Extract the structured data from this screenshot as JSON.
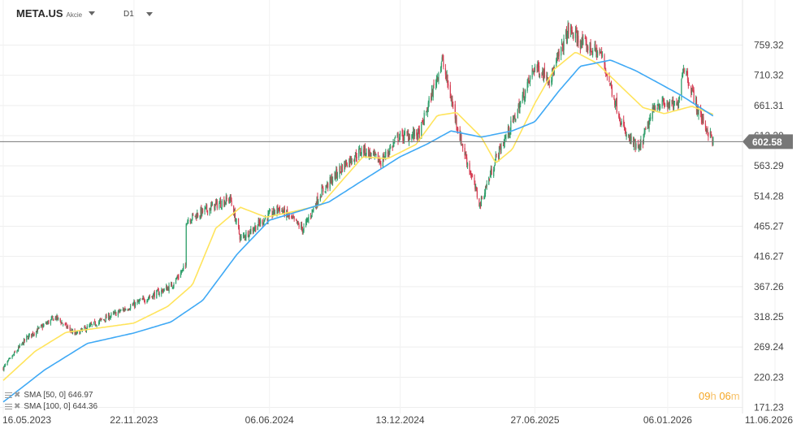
{
  "header": {
    "symbol": "META.US",
    "asset_type": "Akcie",
    "timeframe": "D1"
  },
  "legend": [
    {
      "label": "SMA [50, 0]",
      "value": "646.97",
      "color": "#ffe45c"
    },
    {
      "label": "SMA [100, 0]",
      "value": "644.36",
      "color": "#3fa9f5"
    }
  ],
  "countdown": {
    "hours": "09",
    "hours_unit": "h",
    "minutes": "06",
    "minutes_unit": "m"
  },
  "chart_data": {
    "type": "candlestick",
    "title": "",
    "xlabel": "",
    "ylabel": "",
    "ylim": [
      171.23,
      800
    ],
    "y_ticks": [
      "171.23",
      "220.23",
      "269.24",
      "318.25",
      "367.26",
      "416.27",
      "465.27",
      "514.28",
      "563.29",
      "612.30",
      "661.31",
      "710.32",
      "759.32"
    ],
    "x_ticks": [
      "16.05.2023",
      "22.11.2023",
      "06.06.2024",
      "13.12.2024",
      "27.06.2025",
      "06.01.2026",
      "11.06.2026"
    ],
    "x_range": [
      "16.05.2023",
      "11.06.2026"
    ],
    "current_price": {
      "value": 602.58,
      "label": "602.58",
      "color": "#777777"
    },
    "grid": true,
    "price_path": [
      [
        "2023-05-16",
        235
      ],
      [
        "2023-06-20",
        285
      ],
      [
        "2023-07-31",
        318
      ],
      [
        "2023-08-28",
        290
      ],
      [
        "2023-10-10",
        315
      ],
      [
        "2023-11-22",
        338
      ],
      [
        "2024-01-15",
        368
      ],
      [
        "2024-02-05",
        400
      ],
      [
        "2024-02-06",
        475
      ],
      [
        "2024-03-20",
        500
      ],
      [
        "2024-04-10",
        510
      ],
      [
        "2024-04-25",
        445
      ],
      [
        "2024-05-28",
        475
      ],
      [
        "2024-06-20",
        495
      ],
      [
        "2024-07-25",
        460
      ],
      [
        "2024-08-20",
        520
      ],
      [
        "2024-09-25",
        568
      ],
      [
        "2024-10-20",
        590
      ],
      [
        "2024-11-15",
        570
      ],
      [
        "2024-12-10",
        610
      ],
      [
        "2025-01-10",
        615
      ],
      [
        "2025-02-12",
        735
      ],
      [
        "2025-03-10",
        610
      ],
      [
        "2025-04-08",
        500
      ],
      [
        "2025-05-01",
        575
      ],
      [
        "2025-05-28",
        640
      ],
      [
        "2025-06-27",
        725
      ],
      [
        "2025-07-20",
        705
      ],
      [
        "2025-08-15",
        785
      ],
      [
        "2025-09-05",
        760
      ],
      [
        "2025-10-01",
        745
      ],
      [
        "2025-11-05",
        615
      ],
      [
        "2025-11-25",
        588
      ],
      [
        "2025-12-20",
        665
      ],
      [
        "2026-01-20",
        660
      ],
      [
        "2026-01-29",
        728
      ],
      [
        "2026-02-20",
        650
      ],
      [
        "2026-03-13",
        602.58
      ]
    ],
    "series": [
      {
        "name": "SMA [50, 0]",
        "color": "#ffe45c",
        "points": [
          [
            "2023-05-16",
            215
          ],
          [
            "2023-07-01",
            262
          ],
          [
            "2023-08-15",
            293
          ],
          [
            "2023-10-01",
            300
          ],
          [
            "2023-11-22",
            308
          ],
          [
            "2024-01-10",
            335
          ],
          [
            "2024-02-15",
            370
          ],
          [
            "2024-03-20",
            462
          ],
          [
            "2024-04-25",
            496
          ],
          [
            "2024-06-01",
            480
          ],
          [
            "2024-07-15",
            490
          ],
          [
            "2024-08-20",
            500
          ],
          [
            "2024-09-20",
            540
          ],
          [
            "2024-10-20",
            578
          ],
          [
            "2024-11-25",
            575
          ],
          [
            "2025-01-05",
            598
          ],
          [
            "2025-02-05",
            645
          ],
          [
            "2025-03-05",
            650
          ],
          [
            "2025-04-10",
            610
          ],
          [
            "2025-05-01",
            568
          ],
          [
            "2025-05-25",
            590
          ],
          [
            "2025-06-27",
            665
          ],
          [
            "2025-07-25",
            720
          ],
          [
            "2025-08-25",
            748
          ],
          [
            "2025-09-25",
            730
          ],
          [
            "2025-11-01",
            690
          ],
          [
            "2025-12-01",
            658
          ],
          [
            "2026-01-01",
            648
          ],
          [
            "2026-02-10",
            660
          ],
          [
            "2026-03-13",
            646.97
          ]
        ]
      },
      {
        "name": "SMA [100, 0]",
        "color": "#3fa9f5",
        "points": [
          [
            "2023-05-16",
            180
          ],
          [
            "2023-07-15",
            232
          ],
          [
            "2023-09-15",
            275
          ],
          [
            "2023-11-22",
            292
          ],
          [
            "2024-01-15",
            310
          ],
          [
            "2024-03-01",
            345
          ],
          [
            "2024-04-20",
            420
          ],
          [
            "2024-06-06",
            475
          ],
          [
            "2024-07-20",
            490
          ],
          [
            "2024-09-01",
            505
          ],
          [
            "2024-10-20",
            540
          ],
          [
            "2024-12-13",
            578
          ],
          [
            "2025-01-20",
            598
          ],
          [
            "2025-02-25",
            620
          ],
          [
            "2025-04-10",
            610
          ],
          [
            "2025-05-25",
            620
          ],
          [
            "2025-06-27",
            635
          ],
          [
            "2025-08-01",
            685
          ],
          [
            "2025-09-01",
            725
          ],
          [
            "2025-10-15",
            735
          ],
          [
            "2025-11-20",
            718
          ],
          [
            "2025-12-20",
            700
          ],
          [
            "2026-01-25",
            678
          ],
          [
            "2026-03-13",
            644.36
          ]
        ]
      }
    ]
  }
}
